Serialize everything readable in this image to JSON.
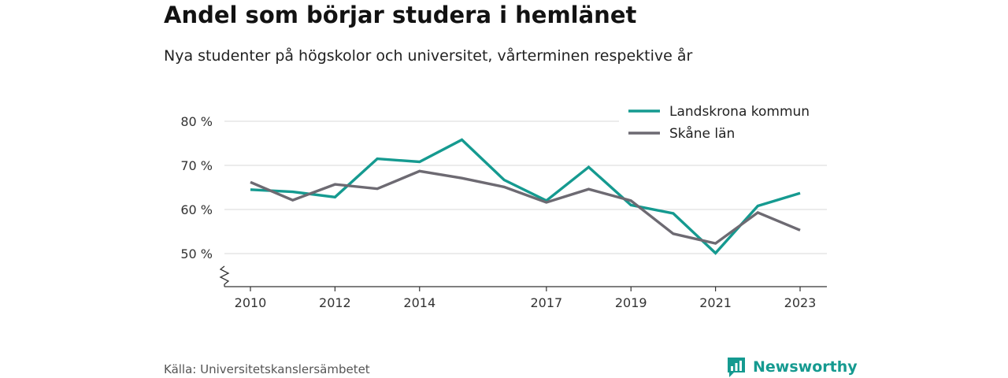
{
  "title": "Andel som börjar studera i hemlänet",
  "subtitle": "Nya studenter på högskolor och universitet, vårterminen respektive år",
  "source": "Källa: Universitetskanslersämbetet",
  "brand": {
    "name": "Newsworthy",
    "color": "#159a90"
  },
  "chart_data": {
    "type": "line",
    "x": [
      2010,
      2011,
      2012,
      2013,
      2014,
      2015,
      2016,
      2017,
      2018,
      2019,
      2020,
      2021,
      2022,
      2023
    ],
    "x_tick_labels": [
      "2010",
      "2012",
      "2014",
      "2017",
      "2019",
      "2021",
      "2023"
    ],
    "x_tick_values": [
      2010,
      2012,
      2014,
      2017,
      2019,
      2021,
      2023
    ],
    "y_tick_labels": [
      "50 %",
      "60 %",
      "70 %",
      "80 %"
    ],
    "y_tick_values": [
      50,
      60,
      70,
      80
    ],
    "ylim": [
      42.5,
      80
    ],
    "y_axis_break": true,
    "grid": true,
    "legend_position": "top-right",
    "series": [
      {
        "name": "Landskrona kommun",
        "color": "#159a90",
        "values": [
          64.5,
          64.0,
          62.8,
          71.5,
          70.8,
          75.8,
          66.7,
          62.0,
          69.6,
          61.0,
          59.1,
          50.1,
          60.8,
          63.7
        ]
      },
      {
        "name": "Skåne län",
        "color": "#6d6a72",
        "values": [
          66.2,
          62.1,
          65.7,
          64.7,
          68.7,
          67.1,
          65.1,
          61.6,
          64.6,
          62.0,
          54.5,
          52.3,
          59.3,
          55.3
        ]
      }
    ]
  }
}
